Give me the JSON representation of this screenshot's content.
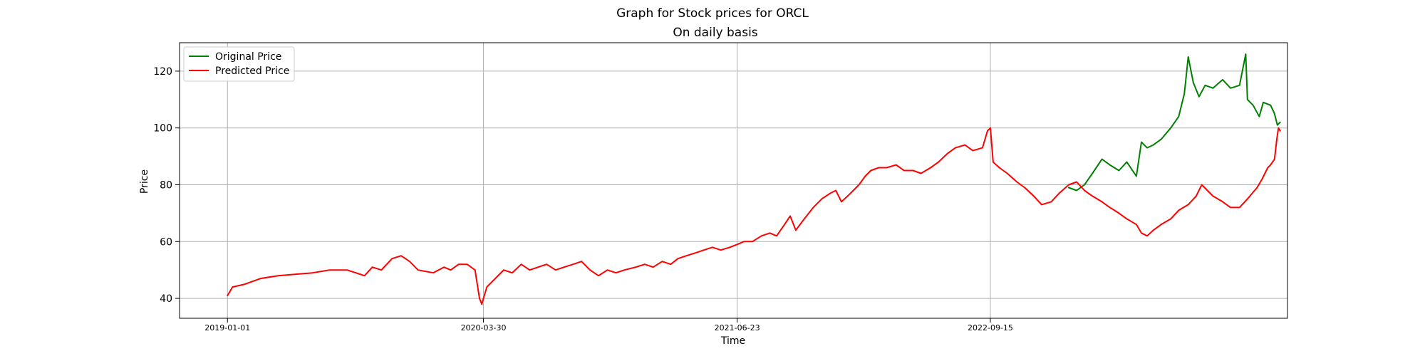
{
  "chart_data": {
    "type": "line",
    "suptitle": "Graph for Stock prices for ORCL",
    "title": "On daily basis",
    "xlabel": "Time",
    "ylabel": "Price",
    "xlim": [
      "2018-10-08",
      "2024-02-24"
    ],
    "ylim": [
      33,
      130
    ],
    "yticks": [
      40,
      60,
      80,
      100,
      120
    ],
    "xticks": [
      "2019-01-01",
      "2020-03-30",
      "2021-06-23",
      "2022-09-15"
    ],
    "grid": true,
    "legend_position": "top-left",
    "series": [
      {
        "name": "Original Price",
        "color": "#008000",
        "points": [
          [
            "2023-02-01",
            79
          ],
          [
            "2023-02-15",
            78
          ],
          [
            "2023-03-01",
            80
          ],
          [
            "2023-03-15",
            84
          ],
          [
            "2023-04-01",
            89
          ],
          [
            "2023-04-15",
            87
          ],
          [
            "2023-05-01",
            85
          ],
          [
            "2023-05-15",
            88
          ],
          [
            "2023-06-01",
            83
          ],
          [
            "2023-06-10",
            95
          ],
          [
            "2023-06-20",
            93
          ],
          [
            "2023-07-01",
            94
          ],
          [
            "2023-07-15",
            96
          ],
          [
            "2023-08-01",
            100
          ],
          [
            "2023-08-15",
            104
          ],
          [
            "2023-08-25",
            112
          ],
          [
            "2023-09-01",
            125
          ],
          [
            "2023-09-10",
            116
          ],
          [
            "2023-09-20",
            111
          ],
          [
            "2023-10-01",
            115
          ],
          [
            "2023-10-15",
            114
          ],
          [
            "2023-11-01",
            117
          ],
          [
            "2023-11-15",
            114
          ],
          [
            "2023-12-01",
            115
          ],
          [
            "2023-12-12",
            126
          ],
          [
            "2023-12-15",
            110
          ],
          [
            "2023-12-25",
            108
          ],
          [
            "2024-01-05",
            104
          ],
          [
            "2024-01-12",
            109
          ],
          [
            "2024-01-25",
            108
          ],
          [
            "2024-02-01",
            105
          ],
          [
            "2024-02-06",
            101
          ],
          [
            "2024-02-11",
            102
          ]
        ]
      },
      {
        "name": "Predicted Price",
        "color": "#ff0000",
        "points": [
          [
            "2019-01-01",
            41
          ],
          [
            "2019-01-10",
            44
          ],
          [
            "2019-02-01",
            45
          ],
          [
            "2019-03-01",
            47
          ],
          [
            "2019-04-01",
            48
          ],
          [
            "2019-05-01",
            48.5
          ],
          [
            "2019-06-01",
            49
          ],
          [
            "2019-07-01",
            50
          ],
          [
            "2019-08-01",
            50
          ],
          [
            "2019-09-01",
            48
          ],
          [
            "2019-09-15",
            51
          ],
          [
            "2019-10-01",
            50
          ],
          [
            "2019-10-20",
            54
          ],
          [
            "2019-11-05",
            55
          ],
          [
            "2019-11-20",
            53
          ],
          [
            "2019-12-05",
            50
          ],
          [
            "2020-01-01",
            49
          ],
          [
            "2020-01-20",
            51
          ],
          [
            "2020-02-01",
            50
          ],
          [
            "2020-02-15",
            52
          ],
          [
            "2020-03-01",
            52
          ],
          [
            "2020-03-15",
            50
          ],
          [
            "2020-03-23",
            40
          ],
          [
            "2020-03-27",
            38
          ],
          [
            "2020-04-05",
            44
          ],
          [
            "2020-04-20",
            47
          ],
          [
            "2020-05-05",
            50
          ],
          [
            "2020-05-20",
            49
          ],
          [
            "2020-06-05",
            52
          ],
          [
            "2020-06-20",
            50
          ],
          [
            "2020-07-05",
            51
          ],
          [
            "2020-07-20",
            52
          ],
          [
            "2020-08-05",
            50
          ],
          [
            "2020-08-20",
            51
          ],
          [
            "2020-09-05",
            52
          ],
          [
            "2020-09-20",
            53
          ],
          [
            "2020-10-05",
            50
          ],
          [
            "2020-10-20",
            48
          ],
          [
            "2020-11-05",
            50
          ],
          [
            "2020-11-20",
            49
          ],
          [
            "2020-12-05",
            50
          ],
          [
            "2020-12-25",
            51
          ],
          [
            "2021-01-10",
            52
          ],
          [
            "2021-01-25",
            51
          ],
          [
            "2021-02-10",
            53
          ],
          [
            "2021-02-25",
            52
          ],
          [
            "2021-03-10",
            54
          ],
          [
            "2021-03-25",
            55
          ],
          [
            "2021-04-10",
            56
          ],
          [
            "2021-04-25",
            57
          ],
          [
            "2021-05-10",
            58
          ],
          [
            "2021-05-25",
            57
          ],
          [
            "2021-06-10",
            58
          ],
          [
            "2021-06-23",
            59
          ],
          [
            "2021-07-05",
            60
          ],
          [
            "2021-07-20",
            60
          ],
          [
            "2021-08-05",
            62
          ],
          [
            "2021-08-20",
            63
          ],
          [
            "2021-09-01",
            62
          ],
          [
            "2021-09-15",
            66
          ],
          [
            "2021-09-25",
            69
          ],
          [
            "2021-10-05",
            64
          ],
          [
            "2021-10-20",
            68
          ],
          [
            "2021-11-05",
            72
          ],
          [
            "2021-11-20",
            75
          ],
          [
            "2021-12-05",
            77
          ],
          [
            "2021-12-15",
            78
          ],
          [
            "2021-12-25",
            74
          ],
          [
            "2022-01-05",
            76
          ],
          [
            "2022-01-15",
            78
          ],
          [
            "2022-01-25",
            80
          ],
          [
            "2022-02-05",
            83
          ],
          [
            "2022-02-15",
            85
          ],
          [
            "2022-03-01",
            86
          ],
          [
            "2022-03-15",
            86
          ],
          [
            "2022-04-01",
            87
          ],
          [
            "2022-04-15",
            85
          ],
          [
            "2022-05-01",
            85
          ],
          [
            "2022-05-15",
            84
          ],
          [
            "2022-06-01",
            86
          ],
          [
            "2022-06-15",
            88
          ],
          [
            "2022-07-01",
            91
          ],
          [
            "2022-07-15",
            93
          ],
          [
            "2022-08-01",
            94
          ],
          [
            "2022-08-15",
            92
          ],
          [
            "2022-09-01",
            93
          ],
          [
            "2022-09-10",
            99
          ],
          [
            "2022-09-15",
            100
          ],
          [
            "2022-09-20",
            88
          ],
          [
            "2022-10-01",
            86
          ],
          [
            "2022-10-15",
            84
          ],
          [
            "2022-11-01",
            81
          ],
          [
            "2022-11-15",
            79
          ],
          [
            "2022-12-01",
            76
          ],
          [
            "2022-12-15",
            73
          ],
          [
            "2023-01-01",
            74
          ],
          [
            "2023-01-15",
            77
          ],
          [
            "2023-02-01",
            80
          ],
          [
            "2023-02-15",
            81
          ],
          [
            "2023-03-01",
            78
          ],
          [
            "2023-03-15",
            76
          ],
          [
            "2023-04-01",
            74
          ],
          [
            "2023-04-15",
            72
          ],
          [
            "2023-05-01",
            70
          ],
          [
            "2023-05-15",
            68
          ],
          [
            "2023-06-01",
            66
          ],
          [
            "2023-06-10",
            63
          ],
          [
            "2023-06-20",
            62
          ],
          [
            "2023-07-01",
            64
          ],
          [
            "2023-07-15",
            66
          ],
          [
            "2023-08-01",
            68
          ],
          [
            "2023-08-15",
            71
          ],
          [
            "2023-09-01",
            73
          ],
          [
            "2023-09-15",
            76
          ],
          [
            "2023-09-25",
            80
          ],
          [
            "2023-10-05",
            78
          ],
          [
            "2023-10-15",
            76
          ],
          [
            "2023-11-01",
            74
          ],
          [
            "2023-11-15",
            72
          ],
          [
            "2023-12-01",
            72
          ],
          [
            "2023-12-15",
            75
          ],
          [
            "2024-01-01",
            79
          ],
          [
            "2024-01-10",
            82
          ],
          [
            "2024-01-20",
            86
          ],
          [
            "2024-01-25",
            87
          ],
          [
            "2024-02-01",
            89
          ],
          [
            "2024-02-05",
            96
          ],
          [
            "2024-02-08",
            100
          ],
          [
            "2024-02-11",
            99
          ]
        ]
      }
    ]
  }
}
